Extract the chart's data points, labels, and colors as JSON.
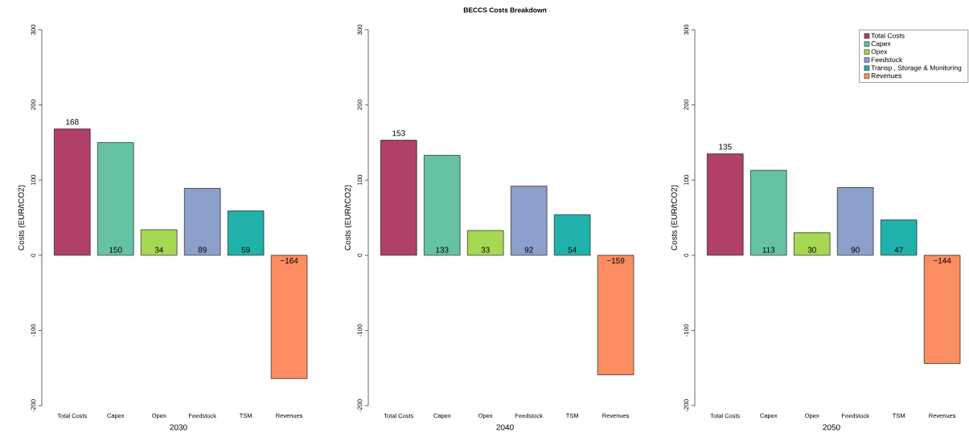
{
  "chart_data": [
    {
      "type": "bar",
      "categories": [
        "Total Costs",
        "Capex",
        "Opex",
        "Feedstock",
        "TSM",
        "Revenues"
      ],
      "values": [
        168,
        150,
        34,
        89,
        59,
        -164
      ],
      "colors": [
        "#b0406a",
        "#66c2a5",
        "#a6d854",
        "#8da0cb",
        "#20b2aa",
        "#fc8d62"
      ],
      "xlabel": "2030",
      "ylabel": "Costs (EUR/tCO2)",
      "ylim": [
        -200,
        300
      ],
      "yticks": [
        -200,
        -100,
        0,
        100,
        200,
        300
      ],
      "data_labels": true
    },
    {
      "type": "bar",
      "title": "BECCS Costs Breakdown",
      "categories": [
        "Total Costs",
        "Capex",
        "Opex",
        "Feedstock",
        "TSM",
        "Revenues"
      ],
      "values": [
        153,
        133,
        33,
        92,
        54,
        -159
      ],
      "colors": [
        "#b0406a",
        "#66c2a5",
        "#a6d854",
        "#8da0cb",
        "#20b2aa",
        "#fc8d62"
      ],
      "xlabel": "2040",
      "ylabel": "Costs (EUR/tCO2)",
      "ylim": [
        -200,
        300
      ],
      "yticks": [
        -200,
        -100,
        0,
        100,
        200,
        300
      ],
      "data_labels": true
    },
    {
      "type": "bar",
      "categories": [
        "Total Costs",
        "Capex",
        "Opex",
        "Feedstock",
        "TSM",
        "Revenues"
      ],
      "series": [
        {
          "name": "Total Costs",
          "color": "#b0406a",
          "values": [
            135,
            null,
            null,
            null,
            null,
            null
          ]
        },
        {
          "name": "Capex",
          "color": "#66c2a5",
          "values": [
            null,
            113,
            null,
            null,
            null,
            null
          ]
        },
        {
          "name": "Opex",
          "color": "#a6d854",
          "values": [
            null,
            null,
            30,
            null,
            null,
            null
          ]
        },
        {
          "name": "Feedstock",
          "color": "#8da0cb",
          "values": [
            null,
            null,
            null,
            90,
            null,
            null
          ]
        },
        {
          "name": "Transp., Storage & Monitoring",
          "color": "#20b2aa",
          "values": [
            null,
            null,
            null,
            null,
            47,
            null
          ]
        },
        {
          "name": "Revenues",
          "color": "#fc8d62",
          "values": [
            null,
            null,
            null,
            null,
            null,
            -144
          ]
        }
      ],
      "xlabel": "2050",
      "ylabel": "Costs (EUR/tCO2)",
      "ylim": [
        -200,
        300
      ],
      "yticks": [
        -200,
        -100,
        0,
        100,
        200,
        300
      ],
      "data_labels": true,
      "legend": "top right"
    }
  ]
}
